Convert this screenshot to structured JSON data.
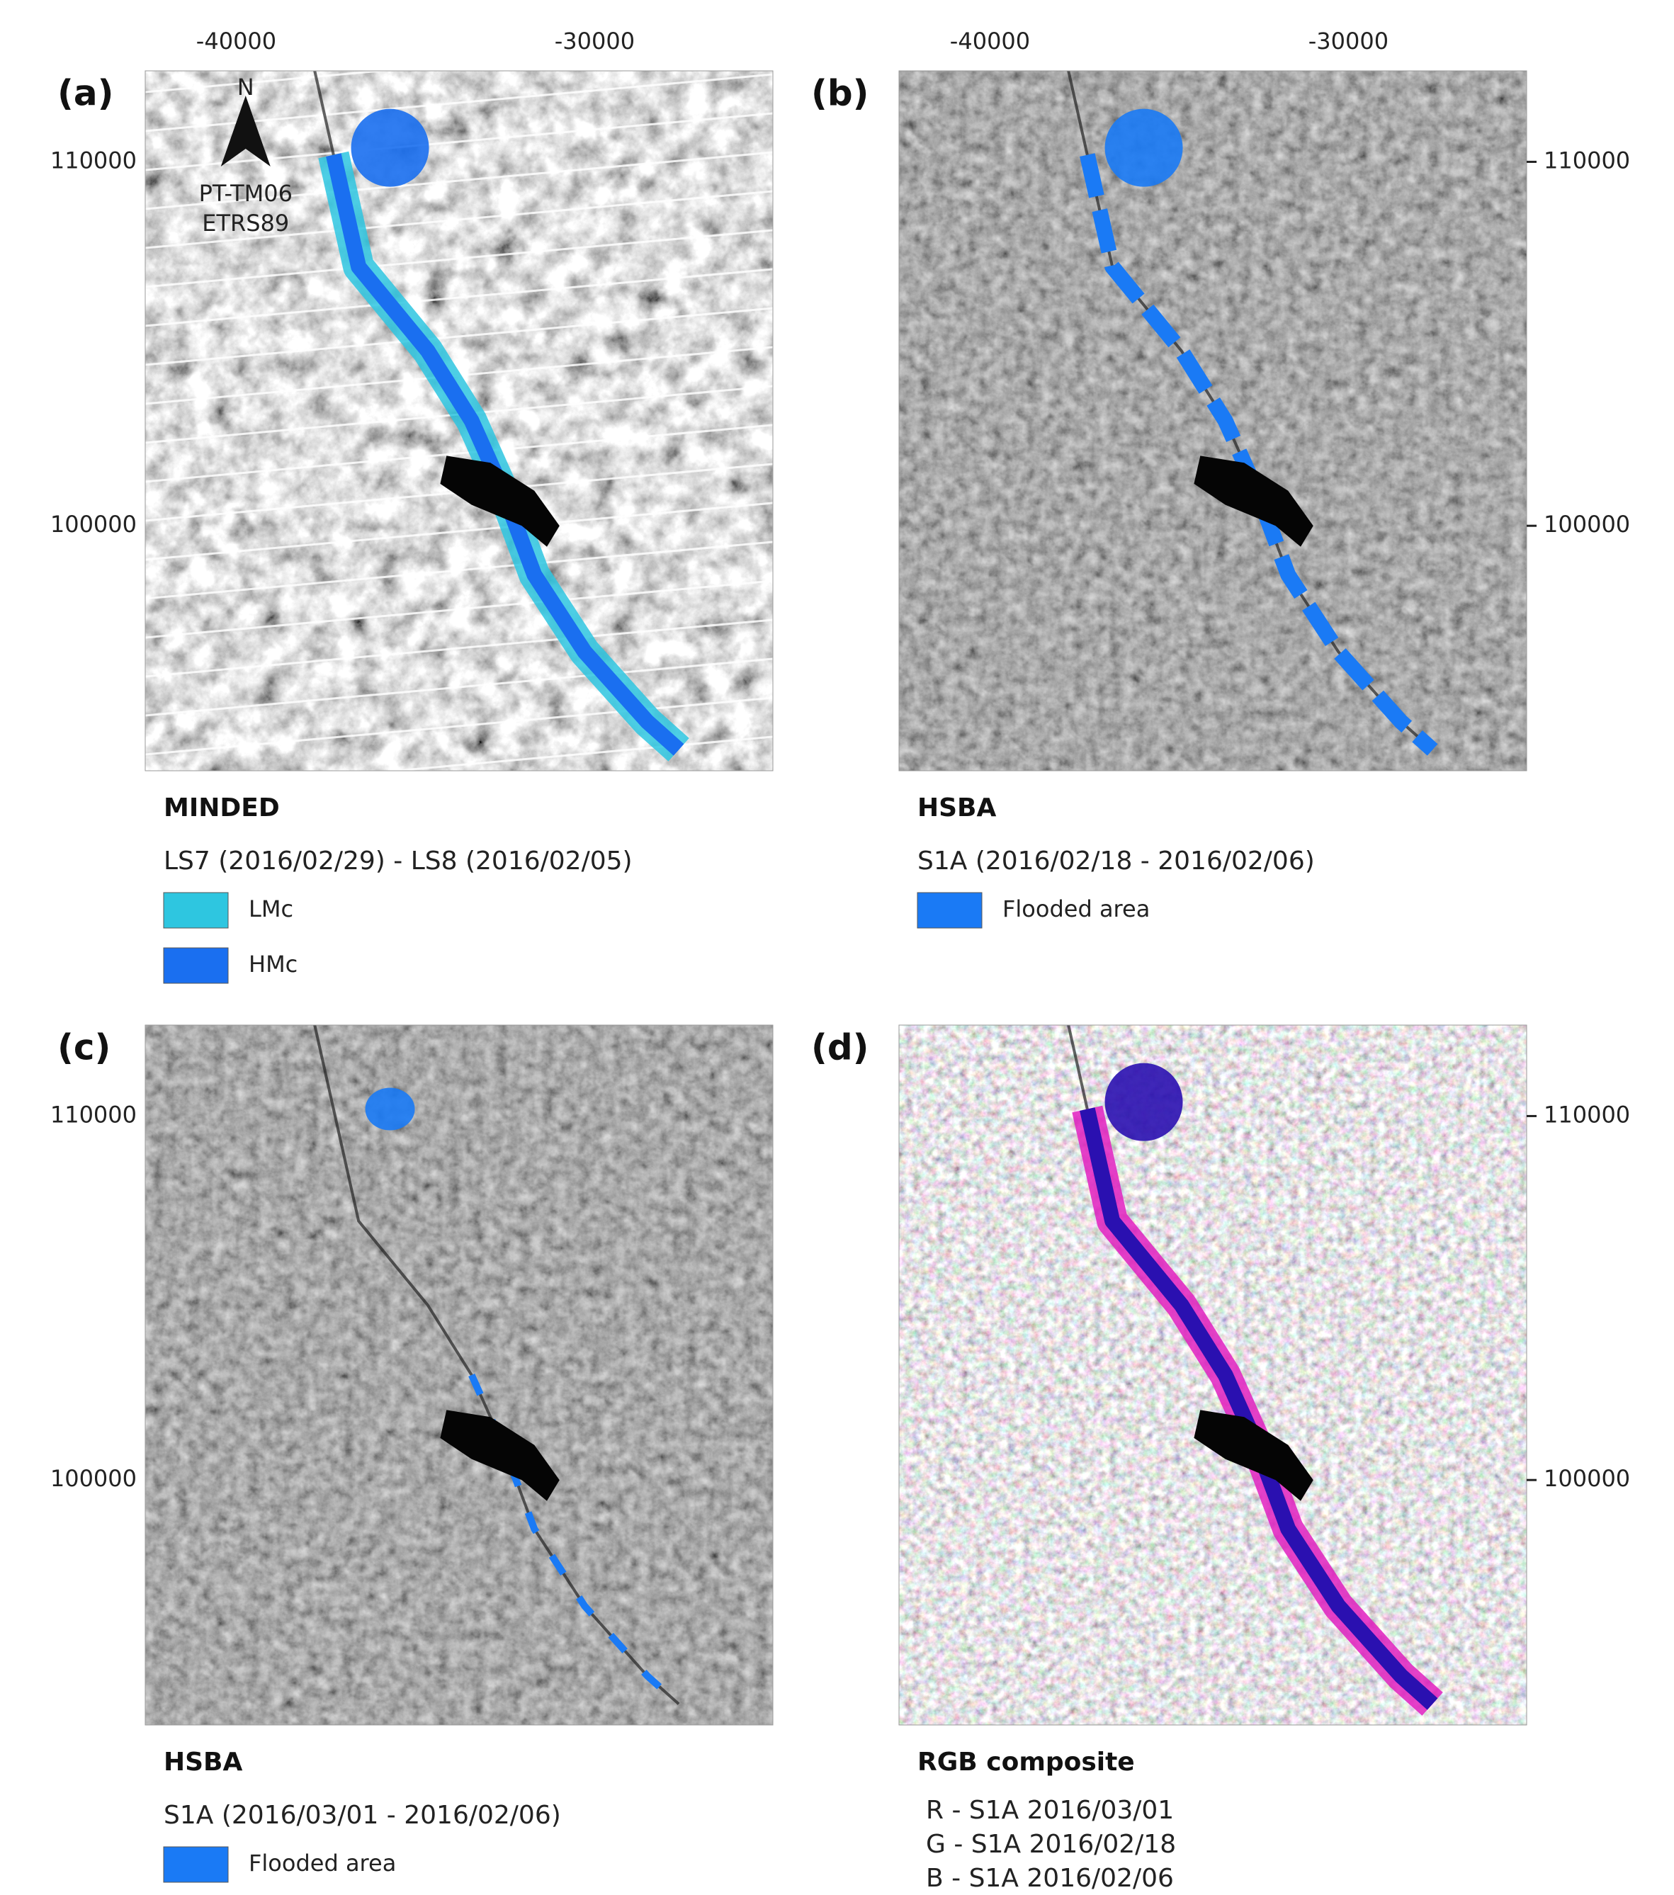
{
  "panels": [
    {
      "label": "(a)",
      "x_ticks": [
        "-40000",
        "-30000"
      ],
      "y_ticks": [
        "110000",
        "100000"
      ],
      "map_note": {
        "north": "N",
        "crs": [
          "PT-TM06",
          "ETRS89"
        ]
      },
      "legend": {
        "title": "MINDED",
        "subtitle": "LS7 (2016/02/29) - LS8 (2016/02/05)",
        "items": [
          "LMc",
          "HMc"
        ]
      }
    },
    {
      "label": "(b)",
      "x_ticks": [
        "-40000",
        "-30000"
      ],
      "y_ticks": [
        "110000",
        "100000"
      ],
      "legend": {
        "title": "HSBA",
        "subtitle": "S1A (2016/02/18 - 2016/02/06)",
        "items": [
          "Flooded area"
        ]
      }
    },
    {
      "label": "(c)",
      "y_ticks": [
        "110000",
        "100000"
      ],
      "legend": {
        "title": "HSBA",
        "subtitle": "S1A (2016/03/01 - 2016/02/06)",
        "items": [
          "Flooded area"
        ]
      }
    },
    {
      "label": "(d)",
      "y_ticks": [
        "110000",
        "100000"
      ],
      "legend": {
        "title": "RGB composite",
        "lines": [
          "R - S1A 2016/03/01",
          "G - S1A 2016/02/18",
          "B - S1A 2016/02/06"
        ]
      }
    }
  ]
}
